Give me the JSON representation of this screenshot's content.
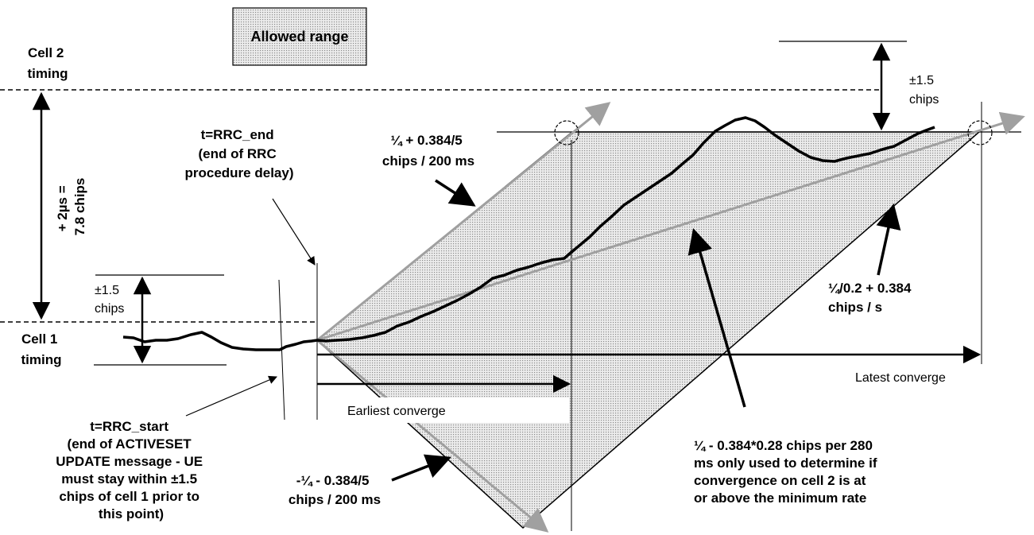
{
  "legend": {
    "label": "Allowed range"
  },
  "cells": {
    "cell2": [
      "Cell 2",
      "timing"
    ],
    "cell1": [
      "Cell 1",
      "timing"
    ]
  },
  "offset_label": [
    "+ 2µs =",
    "7.8 chips"
  ],
  "tolerance_left": [
    "±1.5",
    "chips"
  ],
  "tolerance_right": [
    "±1.5",
    "chips"
  ],
  "rrc_end": [
    "t=RRC_end",
    "(end of RRC",
    "procedure delay)"
  ],
  "rrc_start": [
    "t=RRC_start",
    "(end of ACTIVESET",
    "UPDATE message -  UE",
    "must stay within ±1.5",
    "chips of cell 1 prior to",
    "this point)"
  ],
  "upper_rate": [
    "¼ + 0.384/5",
    "chips / 200 ms"
  ],
  "lower_rate": [
    "-¼ - 0.384/5",
    "chips / 200 ms"
  ],
  "min_rate": [
    "¼/0.2 + 0.384",
    "chips / s"
  ],
  "min_rate_note": [
    "¼ - 0.384*0.28 chips per 280",
    "ms only used to determine if",
    "convergence on cell 2 is at",
    "or above the minimum rate"
  ],
  "earliest": "Earliest converge",
  "latest": "Latest converge",
  "colors": {
    "shade": "#d8d8d8",
    "gray_line": "#a0a0a0",
    "black": "#000000"
  }
}
